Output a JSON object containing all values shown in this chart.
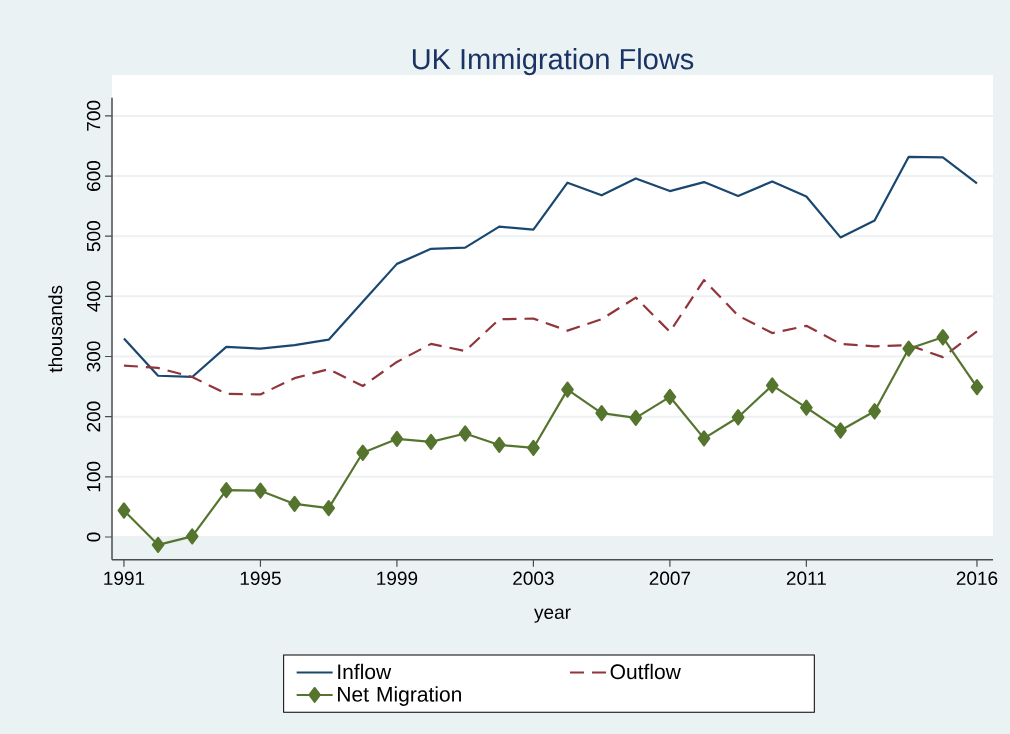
{
  "chart_data": {
    "type": "line",
    "title": "UK Immigration Flows",
    "xlabel": "year",
    "ylabel": "thousands",
    "x": [
      1991,
      1992,
      1993,
      1994,
      1995,
      1996,
      1997,
      1998,
      1999,
      2000,
      2001,
      2002,
      2003,
      2004,
      2005,
      2006,
      2007,
      2008,
      2009,
      2010,
      2011,
      2012,
      2013,
      2014,
      2015,
      2016
    ],
    "series": [
      {
        "name": "Inflow",
        "color": "#1a476f",
        "line_style": "solid",
        "marker": "none",
        "values": [
          330,
          268,
          266,
          316,
          313,
          319,
          328,
          391,
          454,
          479,
          481,
          516,
          511,
          589,
          568,
          596,
          575,
          590,
          567,
          591,
          566,
          498,
          526,
          632,
          631,
          588
        ]
      },
      {
        "name": "Outflow",
        "color": "#90353b",
        "line_style": "dashed",
        "marker": "none",
        "values": [
          285,
          281,
          266,
          238,
          237,
          264,
          279,
          251,
          291,
          321,
          309,
          362,
          363,
          343,
          362,
          398,
          341,
          427,
          368,
          339,
          351,
          321,
          317,
          319,
          299,
          342
        ]
      },
      {
        "name": "Net Migration",
        "color": "#55752f",
        "line_style": "solid",
        "marker": "diamond",
        "values": [
          44,
          -13,
          1,
          78,
          77,
          55,
          48,
          140,
          163,
          158,
          172,
          153,
          148,
          245,
          206,
          198,
          233,
          164,
          199,
          252,
          215,
          177,
          209,
          313,
          332,
          249
        ]
      }
    ],
    "xlim": [
      1990.65,
      2016.47
    ],
    "ylim": [
      -38,
      730
    ],
    "xticks": [
      1991,
      1995,
      1999,
      2003,
      2007,
      2011,
      2016
    ],
    "yticks": [
      0,
      100,
      200,
      300,
      400,
      500,
      600,
      700
    ],
    "grid": "y",
    "legend": "bottom"
  }
}
